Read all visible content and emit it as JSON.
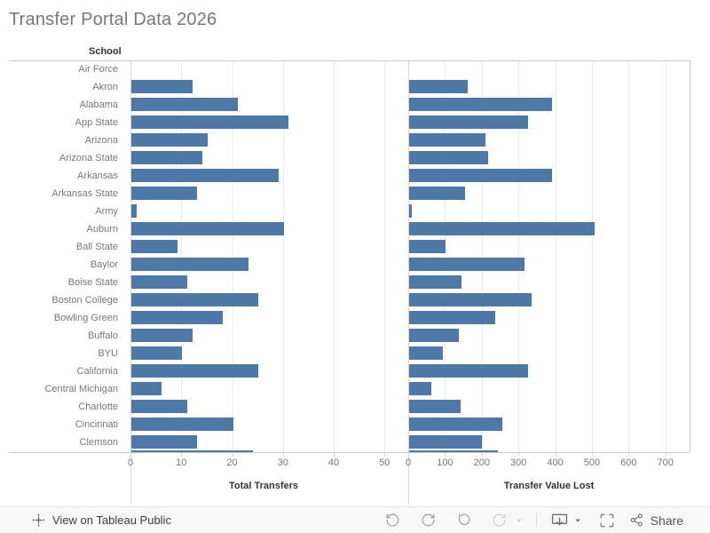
{
  "title": "Transfer Portal Data 2026",
  "chart_data": {
    "type": "bar",
    "orientation": "horizontal",
    "categories_header": "School",
    "categories": [
      "Air Force",
      "Akron",
      "Alabama",
      "App State",
      "Arizona",
      "Arizona State",
      "Arkansas",
      "Arkansas State",
      "Army",
      "Auburn",
      "Ball State",
      "Baylor",
      "Boise State",
      "Boston College",
      "Bowling Green",
      "Buffalo",
      "BYU",
      "California",
      "Central Michigan",
      "Charlotte",
      "Cincinnati",
      "Clemson"
    ],
    "series": [
      {
        "name": "Total Transfers",
        "values": [
          0,
          12,
          21,
          31,
          15,
          14,
          29,
          13,
          1,
          30,
          9,
          23,
          11,
          25,
          18,
          12,
          10,
          25,
          6,
          11,
          20,
          13
        ],
        "partial_next_value": 24,
        "xlim": [
          0,
          52.4
        ],
        "ticks": [
          0,
          10,
          20,
          30,
          40,
          50
        ]
      },
      {
        "name": "Transfer Value Lost",
        "values": [
          0,
          160,
          388,
          324,
          208,
          216,
          388,
          153,
          8,
          506,
          99,
          315,
          143,
          334,
          234,
          136,
          92,
          324,
          61,
          139,
          254,
          198
        ],
        "partial_next_value": 241,
        "xlim": [
          0,
          766
        ],
        "ticks": [
          0,
          100,
          200,
          300,
          400,
          500,
          600,
          700
        ]
      }
    ],
    "bar_color": "#4e79a7",
    "grid": true,
    "legend": "none"
  },
  "toolbar": {
    "view_on_tableau_label": "View on Tableau Public",
    "share_label": "Share",
    "icons": [
      "tableau-logo",
      "undo",
      "redo",
      "revert",
      "refresh-disabled",
      "refresh-caret-disabled",
      "download",
      "download-caret",
      "fullscreen",
      "share"
    ]
  }
}
